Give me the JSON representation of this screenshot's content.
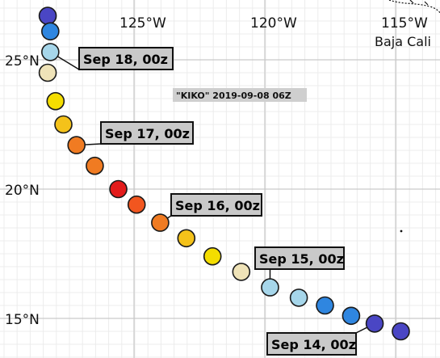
{
  "map": {
    "storm_title": "\"KIKO\" 2019-09-08 06Z",
    "region_label": "Baja Cali",
    "lon_labels": [
      "125°W",
      "120°W",
      "115°W"
    ],
    "lat_labels": [
      "25°N",
      "20°N",
      "15°N"
    ]
  },
  "track": [
    {
      "lon": -128.3,
      "lat": 26.7,
      "color": "#4a46c4"
    },
    {
      "lon": -128.2,
      "lat": 26.1,
      "color": "#2f86e0"
    },
    {
      "lon": -128.2,
      "lat": 25.3,
      "color": "#a6d6ea"
    },
    {
      "lon": -128.3,
      "lat": 24.5,
      "color": "#efe3b8"
    },
    {
      "lon": -128.0,
      "lat": 23.4,
      "color": "#f4dd00"
    },
    {
      "lon": -127.7,
      "lat": 22.5,
      "color": "#f4c21a"
    },
    {
      "lon": -127.2,
      "lat": 21.7,
      "color": "#f07b22"
    },
    {
      "lon": -126.5,
      "lat": 20.9,
      "color": "#f07b22"
    },
    {
      "lon": -125.6,
      "lat": 20.0,
      "color": "#e31c1c"
    },
    {
      "lon": -124.9,
      "lat": 19.4,
      "color": "#f2561f"
    },
    {
      "lon": -124.0,
      "lat": 18.7,
      "color": "#f07b22"
    },
    {
      "lon": -123.0,
      "lat": 18.1,
      "color": "#f4c21a"
    },
    {
      "lon": -122.0,
      "lat": 17.4,
      "color": "#f4dd00"
    },
    {
      "lon": -120.9,
      "lat": 16.8,
      "color": "#efe3b8"
    },
    {
      "lon": -119.8,
      "lat": 16.2,
      "color": "#a6d6ea"
    },
    {
      "lon": -118.7,
      "lat": 15.8,
      "color": "#a6d6ea"
    },
    {
      "lon": -117.7,
      "lat": 15.5,
      "color": "#2f86e0"
    },
    {
      "lon": -116.7,
      "lat": 15.1,
      "color": "#2f86e0"
    },
    {
      "lon": -115.8,
      "lat": 14.8,
      "color": "#4a46c4"
    },
    {
      "lon": -114.8,
      "lat": 14.5,
      "color": "#4a46c4"
    }
  ],
  "date_labels": [
    {
      "text": "Sep 18, 00z"
    },
    {
      "text": "Sep 17, 00z"
    },
    {
      "text": "Sep 16, 00z"
    },
    {
      "text": "Sep 15, 00z"
    },
    {
      "text": "Sep 14, 00z"
    }
  ]
}
